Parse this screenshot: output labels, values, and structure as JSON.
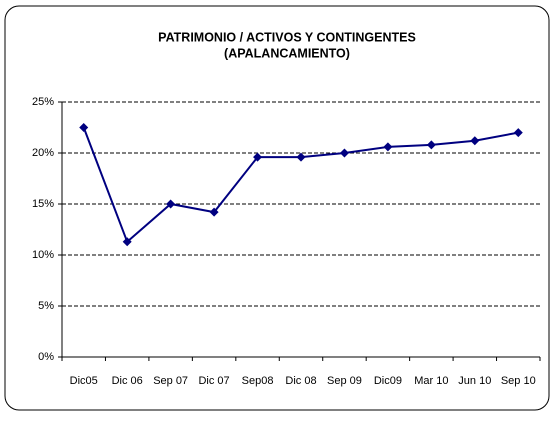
{
  "chart_data": {
    "type": "line",
    "title": "PATRIMONIO / ACTIVOS Y CONTINGENTES",
    "subtitle": "(APALANCAMIENTO)",
    "categories": [
      "Dic05",
      "Dic 06",
      "Sep 07",
      "Dic 07",
      "Sep08",
      "Dic 08",
      "Sep 09",
      "Dic09",
      "Mar 10",
      "Jun 10",
      "Sep 10"
    ],
    "series": [
      {
        "color": "#000080",
        "values": [
          22.5,
          11.3,
          15.0,
          14.2,
          19.6,
          19.6,
          20.0,
          20.6,
          20.8,
          21.2,
          22.0
        ]
      }
    ],
    "ylim": [
      0,
      25
    ],
    "yticks": [
      {
        "value": 0,
        "label": "0%"
      },
      {
        "value": 5,
        "label": "5%"
      },
      {
        "value": 10,
        "label": "10%"
      },
      {
        "value": 15,
        "label": "15%"
      },
      {
        "value": 20,
        "label": "20%"
      },
      {
        "value": 25,
        "label": "25%"
      }
    ],
    "grid": true
  }
}
